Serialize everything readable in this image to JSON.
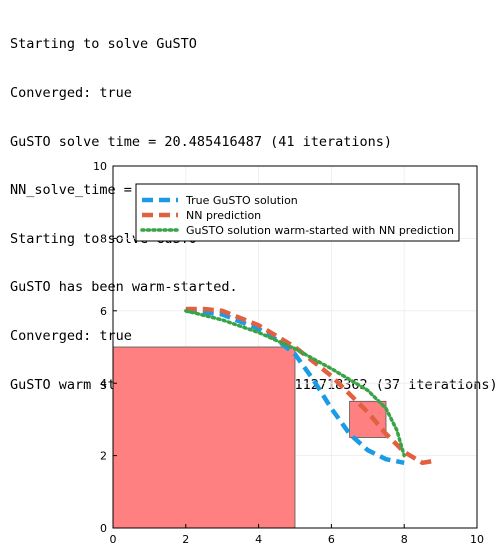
{
  "console": {
    "lines": [
      "Starting to solve GuSTO",
      "Converged: true",
      "GuSTO solve time = 20.485416487 (41 iterations)",
      "NN_solve_time = 0.002442669",
      "Starting to solve GuSTO",
      "GuSTO has been warm-started.",
      "Converged: true",
      "GuSTO warm started solve time = 19.112718362 (37 iterations)"
    ]
  },
  "chart_data": {
    "type": "line",
    "title": "",
    "xlabel": "",
    "ylabel": "",
    "xlim": [
      0,
      10
    ],
    "ylim": [
      0,
      10
    ],
    "xticks": [
      "0",
      "2",
      "4",
      "6",
      "8",
      "10"
    ],
    "yticks": [
      "0",
      "2",
      "4",
      "6",
      "8",
      "10"
    ],
    "grid": true,
    "legend_position": "top-right",
    "obstacles": [
      {
        "x0": 0,
        "x1": 5,
        "y0": 0,
        "y1": 5,
        "color": "#ff8080"
      },
      {
        "x0": 6.5,
        "x1": 7.5,
        "y0": 2.5,
        "y1": 3.5,
        "color": "#ff8080"
      }
    ],
    "series": [
      {
        "name": "True GuSTO solution",
        "color": "#1a9be6",
        "style": "dashed",
        "x": [
          2.0,
          3.0,
          4.0,
          4.5,
          5.0,
          5.5,
          6.0,
          6.5,
          7.0,
          7.5,
          8.0
        ],
        "y": [
          6.0,
          5.9,
          5.5,
          5.2,
          4.8,
          4.1,
          3.3,
          2.6,
          2.15,
          1.9,
          1.8
        ]
      },
      {
        "name": "NN prediction",
        "color": "#e06040",
        "style": "dashed",
        "x": [
          2.0,
          2.5,
          3.0,
          4.0,
          5.0,
          6.0,
          7.0,
          7.5,
          8.0,
          8.5,
          8.8
        ],
        "y": [
          6.05,
          6.05,
          6.0,
          5.6,
          5.0,
          4.2,
          3.2,
          2.6,
          2.1,
          1.8,
          1.85
        ]
      },
      {
        "name": "GuSTO solution warm-started with NN prediction",
        "color": "#3aa346",
        "style": "dotted",
        "x": [
          2.0,
          3.0,
          4.0,
          5.0,
          6.0,
          7.0,
          7.5,
          7.8,
          8.0
        ],
        "y": [
          6.0,
          5.75,
          5.4,
          4.95,
          4.4,
          3.8,
          3.3,
          2.7,
          2.0
        ]
      }
    ]
  }
}
